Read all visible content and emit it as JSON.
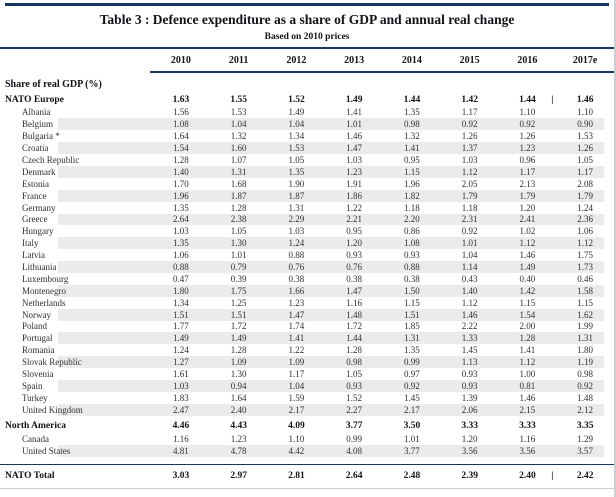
{
  "table": {
    "title": "Table 3 : Defence expenditure as a share of GDP and annual real change",
    "subtitle": "Based on 2010 prices",
    "section_label": "Share of real GDP (%)",
    "years": [
      "2010",
      "2011",
      "2012",
      "2013",
      "2014",
      "2015",
      "2016",
      "2017e"
    ],
    "pipe_glyph": "|",
    "rows": [
      {
        "label": "NATO Europe",
        "bold": true,
        "pipe": true,
        "shade": false,
        "values": [
          "1.63",
          "1.55",
          "1.52",
          "1.49",
          "1.44",
          "1.42",
          "1.44",
          "1.46"
        ]
      },
      {
        "label": "Albania",
        "bold": false,
        "pipe": false,
        "shade": false,
        "values": [
          "1.56",
          "1.53",
          "1.49",
          "1.41",
          "1.35",
          "1.17",
          "1.10",
          "1.10"
        ]
      },
      {
        "label": "Belgium",
        "bold": false,
        "pipe": false,
        "shade": true,
        "values": [
          "1.08",
          "1.04",
          "1.04",
          "1.01",
          "0.98",
          "0.92",
          "0.92",
          "0.90"
        ]
      },
      {
        "label": "Bulgaria *",
        "bold": false,
        "pipe": false,
        "shade": false,
        "values": [
          "1.64",
          "1.32",
          "1.34",
          "1.46",
          "1.32",
          "1.26",
          "1.26",
          "1.53"
        ]
      },
      {
        "label": "Croatia",
        "bold": false,
        "pipe": false,
        "shade": true,
        "values": [
          "1.54",
          "1.60",
          "1.53",
          "1.47",
          "1.41",
          "1.37",
          "1.23",
          "1.26"
        ]
      },
      {
        "label": "Czech Republic",
        "bold": false,
        "pipe": false,
        "shade": false,
        "values": [
          "1.28",
          "1.07",
          "1.05",
          "1.03",
          "0.95",
          "1.03",
          "0.96",
          "1.05"
        ]
      },
      {
        "label": "Denmark",
        "bold": false,
        "pipe": false,
        "shade": true,
        "values": [
          "1.40",
          "1.31",
          "1.35",
          "1.23",
          "1.15",
          "1.12",
          "1.17",
          "1.17"
        ]
      },
      {
        "label": "Estonia",
        "bold": false,
        "pipe": false,
        "shade": false,
        "values": [
          "1.70",
          "1.68",
          "1.90",
          "1.91",
          "1.96",
          "2.05",
          "2.13",
          "2.08"
        ]
      },
      {
        "label": "France",
        "bold": false,
        "pipe": false,
        "shade": true,
        "values": [
          "1.96",
          "1.87",
          "1.87",
          "1.86",
          "1.82",
          "1.79",
          "1.79",
          "1.79"
        ]
      },
      {
        "label": "Germany",
        "bold": false,
        "pipe": false,
        "shade": false,
        "values": [
          "1.35",
          "1.28",
          "1.31",
          "1.22",
          "1.18",
          "1.18",
          "1.20",
          "1.24"
        ]
      },
      {
        "label": "Greece",
        "bold": false,
        "pipe": false,
        "shade": true,
        "values": [
          "2.64",
          "2.38",
          "2.29",
          "2.21",
          "2.20",
          "2.31",
          "2.41",
          "2.36"
        ]
      },
      {
        "label": "Hungary",
        "bold": false,
        "pipe": false,
        "shade": false,
        "values": [
          "1.03",
          "1.05",
          "1.03",
          "0.95",
          "0.86",
          "0.92",
          "1.02",
          "1.06"
        ]
      },
      {
        "label": "Italy",
        "bold": false,
        "pipe": false,
        "shade": true,
        "values": [
          "1.35",
          "1.30",
          "1.24",
          "1.20",
          "1.08",
          "1.01",
          "1.12",
          "1.12"
        ]
      },
      {
        "label": "Latvia",
        "bold": false,
        "pipe": false,
        "shade": false,
        "values": [
          "1.06",
          "1.01",
          "0.88",
          "0.93",
          "0.93",
          "1.04",
          "1.46",
          "1.75"
        ]
      },
      {
        "label": "Lithuania",
        "bold": false,
        "pipe": false,
        "shade": true,
        "values": [
          "0.88",
          "0.79",
          "0.76",
          "0.76",
          "0.88",
          "1.14",
          "1.49",
          "1.73"
        ]
      },
      {
        "label": "Luxembourg",
        "bold": false,
        "pipe": false,
        "shade": false,
        "values": [
          "0.47",
          "0.39",
          "0.38",
          "0.38",
          "0.38",
          "0.43",
          "0.40",
          "0.46"
        ]
      },
      {
        "label": "Montenegro",
        "bold": false,
        "pipe": false,
        "shade": true,
        "values": [
          "1.80",
          "1.75",
          "1.66",
          "1.47",
          "1.50",
          "1.40",
          "1.42",
          "1.58"
        ]
      },
      {
        "label": "Netherlands",
        "bold": false,
        "pipe": false,
        "shade": false,
        "values": [
          "1.34",
          "1.25",
          "1.23",
          "1.16",
          "1.15",
          "1.12",
          "1.15",
          "1.15"
        ]
      },
      {
        "label": "Norway",
        "bold": false,
        "pipe": false,
        "shade": true,
        "values": [
          "1.51",
          "1.51",
          "1.47",
          "1.48",
          "1.51",
          "1.46",
          "1.54",
          "1.62"
        ]
      },
      {
        "label": "Poland",
        "bold": false,
        "pipe": false,
        "shade": false,
        "values": [
          "1.77",
          "1.72",
          "1.74",
          "1.72",
          "1.85",
          "2.22",
          "2.00",
          "1.99"
        ]
      },
      {
        "label": "Portugal",
        "bold": false,
        "pipe": false,
        "shade": true,
        "values": [
          "1.49",
          "1.49",
          "1.41",
          "1.44",
          "1.31",
          "1.33",
          "1.28",
          "1.31"
        ]
      },
      {
        "label": "Romania",
        "bold": false,
        "pipe": false,
        "shade": false,
        "values": [
          "1.24",
          "1.28",
          "1.22",
          "1.28",
          "1.35",
          "1.45",
          "1.41",
          "1.80"
        ]
      },
      {
        "label": "Slovak Republic",
        "bold": false,
        "pipe": false,
        "shade": true,
        "values": [
          "1.27",
          "1.09",
          "1.09",
          "0.98",
          "0.99",
          "1.13",
          "1.12",
          "1.19"
        ]
      },
      {
        "label": "Slovenia",
        "bold": false,
        "pipe": false,
        "shade": false,
        "values": [
          "1.61",
          "1.30",
          "1.17",
          "1.05",
          "0.97",
          "0.93",
          "1.00",
          "0.98"
        ]
      },
      {
        "label": "Spain",
        "bold": false,
        "pipe": false,
        "shade": true,
        "values": [
          "1.03",
          "0.94",
          "1.04",
          "0.93",
          "0.92",
          "0.93",
          "0.81",
          "0.92"
        ]
      },
      {
        "label": "Turkey",
        "bold": false,
        "pipe": false,
        "shade": false,
        "values": [
          "1.83",
          "1.64",
          "1.59",
          "1.52",
          "1.45",
          "1.39",
          "1.46",
          "1.48"
        ]
      },
      {
        "label": "United Kingdom",
        "bold": false,
        "pipe": false,
        "shade": true,
        "values": [
          "2.47",
          "2.40",
          "2.17",
          "2.27",
          "2.17",
          "2.06",
          "2.15",
          "2.12"
        ]
      },
      {
        "label": "North America",
        "bold": true,
        "pipe": false,
        "shade": false,
        "gap_before": true,
        "values": [
          "4.46",
          "4.43",
          "4.09",
          "3.77",
          "3.50",
          "3.33",
          "3.33",
          "3.35"
        ]
      },
      {
        "label": "Canada",
        "bold": false,
        "pipe": false,
        "shade": false,
        "values": [
          "1.16",
          "1.23",
          "1.10",
          "0.99",
          "1.01",
          "1.20",
          "1.16",
          "1.29"
        ]
      },
      {
        "label": "United States",
        "bold": false,
        "pipe": false,
        "shade": true,
        "values": [
          "4.81",
          "4.78",
          "4.42",
          "4.08",
          "3.77",
          "3.56",
          "3.56",
          "3.57"
        ]
      },
      {
        "label": "NATO Total",
        "bold": true,
        "pipe": true,
        "shade": false,
        "total": true,
        "rule_before": true,
        "values": [
          "3.03",
          "2.97",
          "2.81",
          "2.64",
          "2.48",
          "2.39",
          "2.40",
          "2.42"
        ]
      }
    ]
  },
  "colors": {
    "rule": "#17365d",
    "stripe": "#ebebeb"
  }
}
